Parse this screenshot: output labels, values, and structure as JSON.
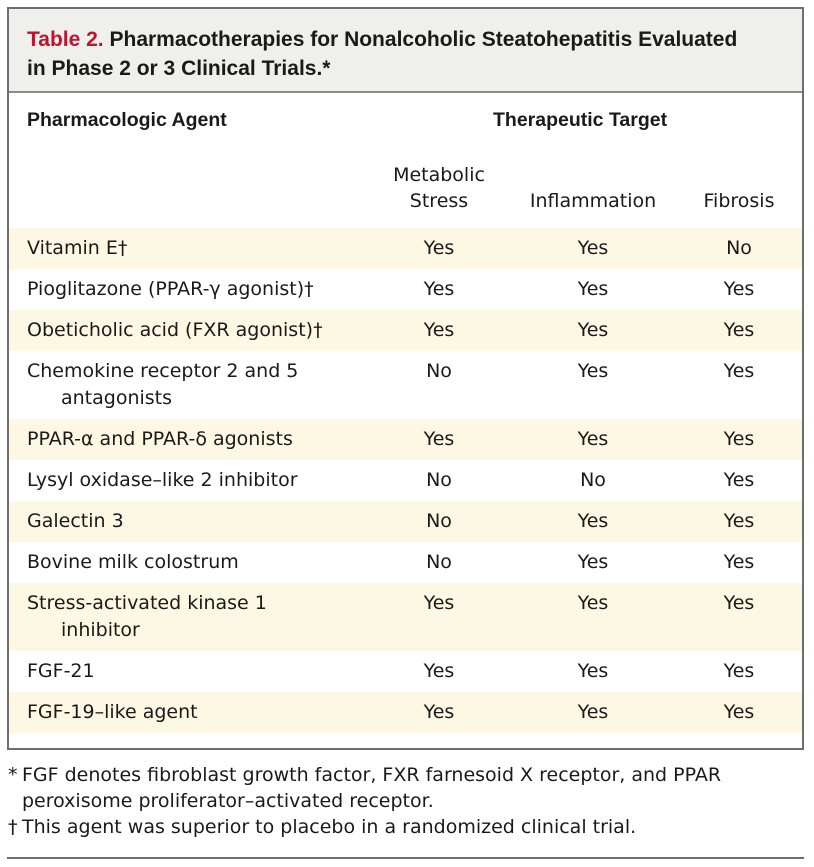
{
  "table": {
    "label": "Table 2.",
    "title_line1": "Pharmacotherapies for Nonalcoholic Steatohepatitis Evaluated",
    "title_line2": "in Phase 2 or 3 Clinical Trials.*",
    "col_agent": "Pharmacologic Agent",
    "col_target": "Therapeutic Target",
    "sub_metabolic_1": "Metabolic",
    "sub_metabolic_2": "Stress",
    "sub_inflammation": "Inflammation",
    "sub_fibrosis": "Fibrosis",
    "rows": [
      {
        "agent": "Vitamin E†",
        "agent_cont": "",
        "metabolic": "Yes",
        "inflammation": "Yes",
        "fibrosis": "No"
      },
      {
        "agent": "Pioglitazone (PPAR-γ agonist)†",
        "agent_cont": "",
        "metabolic": "Yes",
        "inflammation": "Yes",
        "fibrosis": "Yes"
      },
      {
        "agent": "Obeticholic acid (FXR agonist)†",
        "agent_cont": "",
        "metabolic": "Yes",
        "inflammation": "Yes",
        "fibrosis": "Yes"
      },
      {
        "agent": "Chemokine receptor 2 and 5",
        "agent_cont": "antagonists",
        "metabolic": "No",
        "inflammation": "Yes",
        "fibrosis": "Yes"
      },
      {
        "agent": "PPAR-α and PPAR-δ agonists",
        "agent_cont": "",
        "metabolic": "Yes",
        "inflammation": "Yes",
        "fibrosis": "Yes"
      },
      {
        "agent": "Lysyl oxidase–like 2 inhibitor",
        "agent_cont": "",
        "metabolic": "No",
        "inflammation": "No",
        "fibrosis": "Yes"
      },
      {
        "agent": "Galectin 3",
        "agent_cont": "",
        "metabolic": "No",
        "inflammation": "Yes",
        "fibrosis": "Yes"
      },
      {
        "agent": "Bovine milk colostrum",
        "agent_cont": "",
        "metabolic": "No",
        "inflammation": "Yes",
        "fibrosis": "Yes"
      },
      {
        "agent": "Stress-activated kinase 1",
        "agent_cont": "inhibitor",
        "metabolic": "Yes",
        "inflammation": "Yes",
        "fibrosis": "Yes"
      },
      {
        "agent": "FGF-21",
        "agent_cont": "",
        "metabolic": "Yes",
        "inflammation": "Yes",
        "fibrosis": "Yes"
      },
      {
        "agent": "FGF-19–like agent",
        "agent_cont": "",
        "metabolic": "Yes",
        "inflammation": "Yes",
        "fibrosis": "Yes"
      }
    ]
  },
  "footnotes": {
    "star_mark": "*",
    "star_line1": "FGF denotes fibroblast growth factor, FXR farnesoid X receptor, and PPAR",
    "star_line2": "peroxisome proliferator–activated receptor.",
    "dagger_mark": "†",
    "dagger_text": "This agent was superior to placebo in a randomized clinical trial."
  },
  "colors": {
    "label_red": "#c2122d",
    "title_bg": "#efefec",
    "shade_row": "#fcf8e3"
  }
}
